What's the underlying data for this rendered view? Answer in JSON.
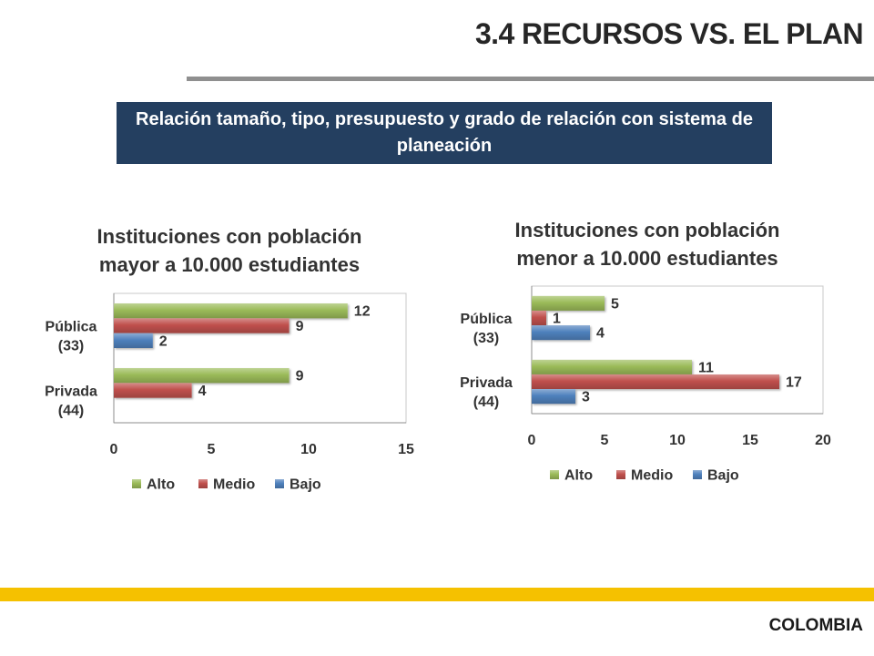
{
  "slide": {
    "title": "3.4 RECURSOS VS. EL PLAN",
    "banner": "Relación tamaño, tipo, presupuesto y grado de relación con sistema de\nplaneación",
    "footer": "COLOMBIA"
  },
  "colors": {
    "banner": "#243f60",
    "title_rule": "#8f8f8f",
    "footer_band": "#f5c100"
  },
  "chart_data": [
    {
      "type": "bar",
      "orientation": "horizontal",
      "title": "Instituciones con población\nmayor a 10.000 estudiantes",
      "categories": [
        [
          "Pública",
          "(33)"
        ],
        [
          "Privada",
          "(44)"
        ]
      ],
      "series": [
        {
          "name": "Alto",
          "color": "#9bbb59",
          "values": [
            12,
            9
          ]
        },
        {
          "name": "Medio",
          "color": "#c0504d",
          "values": [
            9,
            4
          ]
        },
        {
          "name": "Bajo",
          "color": "#4f81bd",
          "values": [
            2,
            null
          ]
        }
      ],
      "xlim": [
        0,
        15
      ],
      "xticks": [
        0,
        5,
        10,
        15
      ],
      "data_labels": true,
      "legend": "bottom",
      "grid": false
    },
    {
      "type": "bar",
      "orientation": "horizontal",
      "title": "Instituciones con población\nmenor a 10.000 estudiantes",
      "categories": [
        [
          "Pública",
          "(33)"
        ],
        [
          "Privada",
          "(44)"
        ]
      ],
      "series": [
        {
          "name": "Alto",
          "color": "#9bbb59",
          "values": [
            5,
            11
          ]
        },
        {
          "name": "Medio",
          "color": "#c0504d",
          "values": [
            1,
            17
          ]
        },
        {
          "name": "Bajo",
          "color": "#4f81bd",
          "values": [
            4,
            3
          ]
        }
      ],
      "xlim": [
        0,
        20
      ],
      "xticks": [
        0,
        5,
        10,
        15,
        20
      ],
      "data_labels": true,
      "legend": "bottom",
      "grid": false
    }
  ]
}
